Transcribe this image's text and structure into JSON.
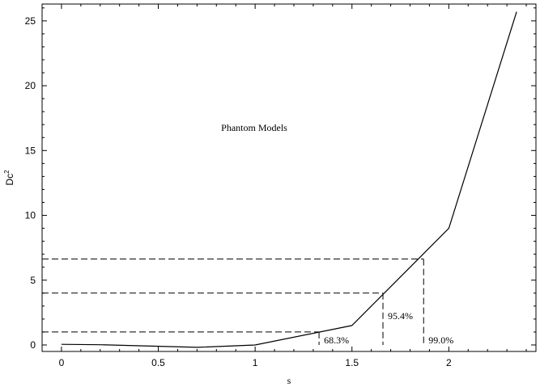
{
  "chart_data": {
    "type": "line",
    "title": "Phantom Models",
    "xlabel": "s",
    "ylabel_main": "Dc",
    "ylabel_sup": "2",
    "xlim": [
      -0.1,
      2.45
    ],
    "ylim": [
      -0.5,
      26.3
    ],
    "x_ticks": [
      0,
      0.5,
      1,
      1.5,
      2
    ],
    "x_tick_labels": [
      "0",
      "0.5",
      "1",
      "1.5",
      "2"
    ],
    "y_ticks": [
      0,
      5,
      10,
      15,
      20,
      25
    ],
    "y_tick_labels": [
      "0",
      "5",
      "10",
      "15",
      "20",
      "25"
    ],
    "grid": false,
    "series": [
      {
        "x": [
          0,
          0.2,
          0.7,
          1.0,
          1.5,
          2.0,
          2.35
        ],
        "y": [
          0.05,
          0.02,
          -0.18,
          0.0,
          1.5,
          9.0,
          25.7
        ]
      }
    ],
    "confidence_levels": [
      {
        "label": "68.3%",
        "delta": 1.0,
        "s": 1.33
      },
      {
        "label": "95.4%",
        "delta": 4.0,
        "s": 1.66
      },
      {
        "label": "99.0%",
        "delta": 6.63,
        "s": 1.87
      }
    ]
  }
}
